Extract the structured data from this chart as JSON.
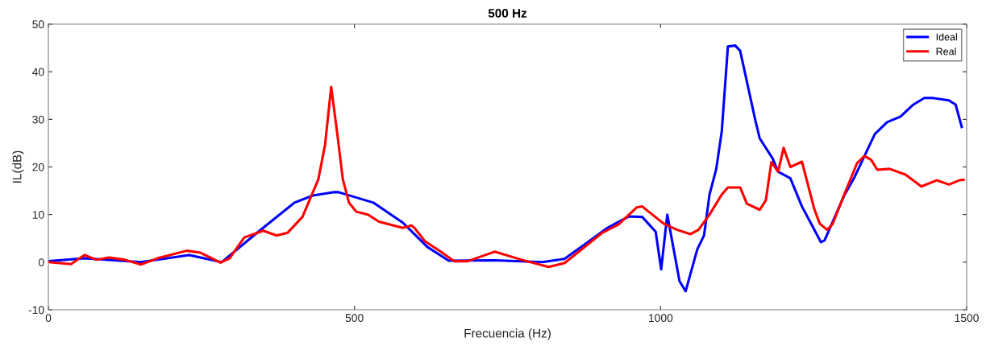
{
  "chart_data": {
    "type": "line",
    "title": "500 Hz",
    "xlabel": "Frecuencia (Hz)",
    "ylabel": "IL(dB)",
    "xlim": [
      0,
      1500
    ],
    "xticks": [
      0,
      500,
      1000,
      1500
    ],
    "ylim": [
      -10,
      50
    ],
    "yticks": [
      -10,
      0,
      10,
      20,
      30,
      40,
      50
    ],
    "grid": false,
    "legend": "top right",
    "marker": "none",
    "line_style": "solid",
    "series": [
      {
        "name": "Ideal",
        "color": "#0000ff",
        "x": [
          0,
          59,
          151,
          230,
          283,
          345,
          402,
          432,
          467,
          474,
          531,
          579,
          619,
          654,
          729,
          807,
          843,
          878,
          913,
          948,
          970,
          992,
          1001,
          1011,
          1031,
          1041,
          1060,
          1071,
          1080,
          1091,
          1100,
          1110,
          1122,
          1130,
          1155,
          1162,
          1183,
          1192,
          1212,
          1231,
          1262,
          1268,
          1300,
          1317,
          1350,
          1370,
          1392,
          1413,
          1431,
          1444,
          1471,
          1482,
          1492
        ],
        "values": [
          0.2,
          0.8,
          0,
          1.5,
          0,
          6.6,
          12.5,
          14,
          14.7,
          14.7,
          12.5,
          8.3,
          3.2,
          0.3,
          0.4,
          0,
          0.7,
          3.9,
          7.2,
          9.6,
          9.5,
          6.4,
          -1.5,
          10,
          -4,
          -6.1,
          2.7,
          5.6,
          14.2,
          19.6,
          27.5,
          45.3,
          45.5,
          44.4,
          29.7,
          26,
          21.8,
          19,
          17.6,
          11.7,
          4.2,
          4.6,
          14,
          17.9,
          26.9,
          29.4,
          30.6,
          33.1,
          34.5,
          34.5,
          34,
          33.1,
          28.4
        ]
      },
      {
        "name": "Real",
        "color": "#ff0000",
        "x": [
          0,
          37,
          59,
          79,
          99,
          125,
          151,
          178,
          226,
          248,
          281,
          296,
          320,
          351,
          373,
          391,
          415,
          441,
          452,
          462,
          472,
          481,
          491,
          503,
          522,
          540,
          579,
          593,
          598,
          615,
          641,
          663,
          685,
          729,
          773,
          817,
          843,
          878,
          904,
          931,
          961,
          970,
          1005,
          1027,
          1049,
          1062,
          1080,
          1100,
          1110,
          1130,
          1141,
          1162,
          1172,
          1181,
          1192,
          1201,
          1212,
          1231,
          1251,
          1260,
          1272,
          1281,
          1300,
          1321,
          1333,
          1344,
          1354,
          1374,
          1400,
          1426,
          1451,
          1471,
          1488,
          1495
        ],
        "values": [
          0,
          -0.4,
          1.5,
          0.5,
          1,
          0.5,
          -0.5,
          0.8,
          2.4,
          2,
          -0.1,
          0.8,
          5.2,
          6.6,
          5.6,
          6.2,
          9.5,
          17.4,
          24.7,
          36.8,
          26.9,
          17.4,
          12.5,
          10.6,
          10,
          8.5,
          7.2,
          7.7,
          7.2,
          4.4,
          2.2,
          0.2,
          0.2,
          2.2,
          0.5,
          -1,
          -0.2,
          3.4,
          6.1,
          7.9,
          11.5,
          11.7,
          8.1,
          6.8,
          5.9,
          6.8,
          10,
          14.2,
          15.7,
          15.7,
          12.3,
          11,
          13,
          21,
          19,
          24,
          20,
          21.1,
          11.2,
          8.1,
          6.8,
          8,
          14.2,
          20.8,
          22.3,
          21.5,
          19.4,
          19.6,
          18.4,
          15.9,
          17.2,
          16.3,
          17.2,
          17.3
        ]
      }
    ]
  }
}
